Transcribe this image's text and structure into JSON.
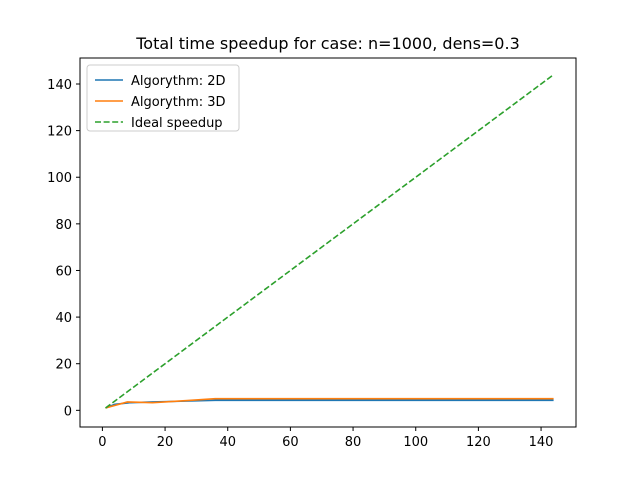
{
  "chart_data": {
    "type": "line",
    "title": "Total time speedup for case: n=1000, dens=0.3",
    "xlabel": "",
    "ylabel": "",
    "xlim": [
      -7.15,
      151.15
    ],
    "ylim": [
      -7.15,
      151.15
    ],
    "xticks": [
      0,
      20,
      40,
      60,
      80,
      100,
      120,
      140
    ],
    "yticks": [
      0,
      20,
      40,
      60,
      80,
      100,
      120,
      140
    ],
    "grid": false,
    "legend_position": "upper left",
    "series": [
      {
        "name": "Algorythm: 2D",
        "color": "#1f77b4",
        "style": "solid",
        "x": [
          1,
          4,
          9,
          16,
          25,
          36,
          49,
          64,
          81,
          100,
          121,
          144
        ],
        "y": [
          1.0,
          2.6,
          3.3,
          3.6,
          3.9,
          4.3,
          4.3,
          4.3,
          4.3,
          4.3,
          4.3,
          4.3
        ]
      },
      {
        "name": "Algorythm: 3D",
        "color": "#ff7f0e",
        "style": "solid",
        "x": [
          1,
          8,
          16,
          27,
          36,
          64,
          100,
          144
        ],
        "y": [
          1.0,
          3.6,
          3.3,
          4.2,
          5.0,
          5.0,
          5.0,
          5.0
        ]
      },
      {
        "name": "Ideal speedup",
        "color": "#2ca02c",
        "style": "dashed",
        "x": [
          1,
          144
        ],
        "y": [
          1,
          144
        ]
      }
    ]
  }
}
